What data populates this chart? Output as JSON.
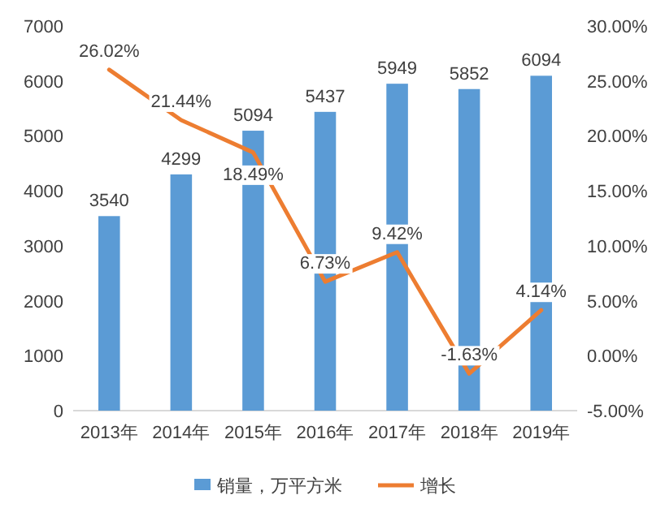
{
  "chart_data": {
    "type": "bar",
    "categories": [
      "2013年",
      "2014年",
      "2015年",
      "2016年",
      "2017年",
      "2018年",
      "2019年"
    ],
    "series": [
      {
        "name": "销量，万平方米",
        "color": "#5b9bd5",
        "values": [
          3540,
          4299,
          5094,
          5437,
          5949,
          5852,
          6094
        ],
        "value_labels": [
          "3540",
          "4299",
          "5094",
          "5437",
          "5949",
          "5852",
          "6094"
        ]
      },
      {
        "name": "增长",
        "type": "line",
        "axis": "y2",
        "color": "#ed7d31",
        "values": [
          26.02,
          21.44,
          18.49,
          6.73,
          9.42,
          -1.63,
          4.14
        ],
        "value_labels": [
          "26.02%",
          "21.44%",
          "18.49%",
          "6.73%",
          "9.42%",
          "-1.63%",
          "4.14%"
        ]
      }
    ],
    "ylim": [
      0,
      7000
    ],
    "yticks": [
      0,
      1000,
      2000,
      3000,
      4000,
      5000,
      6000,
      7000
    ],
    "y2lim": [
      -5,
      30
    ],
    "y2ticks": [
      {
        "value": -5,
        "label": "-5.00%"
      },
      {
        "value": 0,
        "label": "0.00%"
      },
      {
        "value": 5,
        "label": "5.00%"
      },
      {
        "value": 10,
        "label": "10.00%"
      },
      {
        "value": 15,
        "label": "15.00%"
      },
      {
        "value": 20,
        "label": "20.00%"
      },
      {
        "value": 25,
        "label": "25.00%"
      },
      {
        "value": 30,
        "label": "30.00%"
      }
    ],
    "marker": "none",
    "legend": "bottom"
  }
}
